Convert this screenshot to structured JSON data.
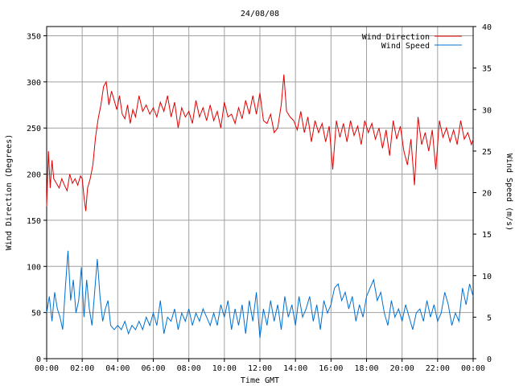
{
  "chart_data": {
    "type": "line",
    "title": "24/08/08",
    "xlabel": "Time GMT",
    "ylabel_left": "Wind Direction (Degrees)",
    "ylabel_right": "Wind Speed (m/s)",
    "x_ticks": [
      "00:00",
      "02:00",
      "04:00",
      "06:00",
      "08:00",
      "10:00",
      "12:00",
      "14:00",
      "16:00",
      "18:00",
      "20:00",
      "22:00",
      "00:00"
    ],
    "x_range_hours": [
      0,
      24
    ],
    "y_left": {
      "min": 0,
      "max": 360,
      "ticks": [
        0,
        50,
        100,
        150,
        200,
        250,
        300,
        350
      ]
    },
    "y_right": {
      "min": 0,
      "max": 40,
      "ticks": [
        0,
        5,
        10,
        15,
        20,
        25,
        30,
        35,
        40
      ]
    },
    "grid": true,
    "legend_position": "top-right",
    "series": [
      {
        "name": "Wind Direction",
        "axis": "left",
        "color": "#e00000",
        "points": [
          [
            0.0,
            165
          ],
          [
            0.1,
            225
          ],
          [
            0.2,
            185
          ],
          [
            0.3,
            215
          ],
          [
            0.4,
            195
          ],
          [
            0.55,
            190
          ],
          [
            0.7,
            185
          ],
          [
            0.85,
            195
          ],
          [
            1.0,
            188
          ],
          [
            1.15,
            182
          ],
          [
            1.3,
            200
          ],
          [
            1.45,
            190
          ],
          [
            1.6,
            195
          ],
          [
            1.75,
            188
          ],
          [
            1.9,
            198
          ],
          [
            2.0,
            195
          ],
          [
            2.1,
            175
          ],
          [
            2.2,
            160
          ],
          [
            2.3,
            185
          ],
          [
            2.45,
            195
          ],
          [
            2.6,
            210
          ],
          [
            2.75,
            240
          ],
          [
            2.9,
            260
          ],
          [
            3.05,
            275
          ],
          [
            3.2,
            295
          ],
          [
            3.35,
            300
          ],
          [
            3.5,
            275
          ],
          [
            3.65,
            290
          ],
          [
            3.8,
            280
          ],
          [
            3.95,
            270
          ],
          [
            4.1,
            285
          ],
          [
            4.25,
            265
          ],
          [
            4.4,
            260
          ],
          [
            4.55,
            275
          ],
          [
            4.7,
            255
          ],
          [
            4.85,
            270
          ],
          [
            5.0,
            262
          ],
          [
            5.2,
            285
          ],
          [
            5.4,
            268
          ],
          [
            5.6,
            275
          ],
          [
            5.8,
            265
          ],
          [
            6.0,
            272
          ],
          [
            6.2,
            262
          ],
          [
            6.4,
            278
          ],
          [
            6.6,
            268
          ],
          [
            6.8,
            285
          ],
          [
            7.0,
            262
          ],
          [
            7.2,
            278
          ],
          [
            7.4,
            250
          ],
          [
            7.6,
            272
          ],
          [
            7.8,
            262
          ],
          [
            8.0,
            268
          ],
          [
            8.2,
            255
          ],
          [
            8.4,
            280
          ],
          [
            8.6,
            262
          ],
          [
            8.8,
            272
          ],
          [
            9.0,
            258
          ],
          [
            9.2,
            275
          ],
          [
            9.4,
            258
          ],
          [
            9.6,
            268
          ],
          [
            9.8,
            250
          ],
          [
            10.0,
            278
          ],
          [
            10.2,
            262
          ],
          [
            10.4,
            265
          ],
          [
            10.6,
            255
          ],
          [
            10.8,
            272
          ],
          [
            11.0,
            260
          ],
          [
            11.2,
            280
          ],
          [
            11.4,
            265
          ],
          [
            11.6,
            285
          ],
          [
            11.8,
            265
          ],
          [
            12.0,
            288
          ],
          [
            12.2,
            258
          ],
          [
            12.4,
            255
          ],
          [
            12.6,
            265
          ],
          [
            12.8,
            245
          ],
          [
            13.0,
            250
          ],
          [
            13.2,
            275
          ],
          [
            13.35,
            308
          ],
          [
            13.5,
            268
          ],
          [
            13.7,
            262
          ],
          [
            13.9,
            258
          ],
          [
            14.1,
            248
          ],
          [
            14.3,
            268
          ],
          [
            14.5,
            245
          ],
          [
            14.7,
            262
          ],
          [
            14.9,
            235
          ],
          [
            15.1,
            258
          ],
          [
            15.3,
            245
          ],
          [
            15.5,
            255
          ],
          [
            15.7,
            235
          ],
          [
            15.9,
            252
          ],
          [
            16.1,
            205
          ],
          [
            16.3,
            258
          ],
          [
            16.5,
            240
          ],
          [
            16.7,
            255
          ],
          [
            16.9,
            235
          ],
          [
            17.1,
            258
          ],
          [
            17.3,
            242
          ],
          [
            17.5,
            252
          ],
          [
            17.7,
            232
          ],
          [
            17.9,
            258
          ],
          [
            18.1,
            245
          ],
          [
            18.3,
            255
          ],
          [
            18.5,
            238
          ],
          [
            18.7,
            250
          ],
          [
            18.9,
            228
          ],
          [
            19.1,
            248
          ],
          [
            19.3,
            220
          ],
          [
            19.5,
            258
          ],
          [
            19.7,
            238
          ],
          [
            19.9,
            252
          ],
          [
            20.1,
            225
          ],
          [
            20.3,
            210
          ],
          [
            20.5,
            238
          ],
          [
            20.7,
            188
          ],
          [
            20.9,
            262
          ],
          [
            21.1,
            232
          ],
          [
            21.3,
            245
          ],
          [
            21.5,
            225
          ],
          [
            21.7,
            248
          ],
          [
            21.9,
            205
          ],
          [
            22.1,
            258
          ],
          [
            22.3,
            240
          ],
          [
            22.5,
            250
          ],
          [
            22.7,
            235
          ],
          [
            22.9,
            248
          ],
          [
            23.1,
            232
          ],
          [
            23.3,
            258
          ],
          [
            23.5,
            238
          ],
          [
            23.7,
            245
          ],
          [
            23.9,
            232
          ],
          [
            24.0,
            238
          ]
        ]
      },
      {
        "name": "Wind Speed",
        "axis": "right",
        "color": "#0070d0",
        "points": [
          [
            0.0,
            5.5
          ],
          [
            0.15,
            7.5
          ],
          [
            0.3,
            4.5
          ],
          [
            0.45,
            8.0
          ],
          [
            0.6,
            6.0
          ],
          [
            0.75,
            5.0
          ],
          [
            0.9,
            3.5
          ],
          [
            1.05,
            8.5
          ],
          [
            1.2,
            13.0
          ],
          [
            1.35,
            7.0
          ],
          [
            1.5,
            9.5
          ],
          [
            1.65,
            5.5
          ],
          [
            1.8,
            7.0
          ],
          [
            1.95,
            11.0
          ],
          [
            2.1,
            5.0
          ],
          [
            2.25,
            9.5
          ],
          [
            2.4,
            6.0
          ],
          [
            2.55,
            4.0
          ],
          [
            2.7,
            8.0
          ],
          [
            2.85,
            12.0
          ],
          [
            3.0,
            7.5
          ],
          [
            3.15,
            4.5
          ],
          [
            3.3,
            6.0
          ],
          [
            3.45,
            7.0
          ],
          [
            3.6,
            4.0
          ],
          [
            3.8,
            3.5
          ],
          [
            4.0,
            4.0
          ],
          [
            4.2,
            3.5
          ],
          [
            4.4,
            4.5
          ],
          [
            4.6,
            3.0
          ],
          [
            4.8,
            4.0
          ],
          [
            5.0,
            3.5
          ],
          [
            5.2,
            4.5
          ],
          [
            5.4,
            3.5
          ],
          [
            5.6,
            5.0
          ],
          [
            5.8,
            4.0
          ],
          [
            6.0,
            5.5
          ],
          [
            6.2,
            4.0
          ],
          [
            6.4,
            7.0
          ],
          [
            6.6,
            3.0
          ],
          [
            6.8,
            5.0
          ],
          [
            7.0,
            4.5
          ],
          [
            7.2,
            6.0
          ],
          [
            7.4,
            3.5
          ],
          [
            7.6,
            5.5
          ],
          [
            7.8,
            4.5
          ],
          [
            8.0,
            6.0
          ],
          [
            8.2,
            4.0
          ],
          [
            8.4,
            5.5
          ],
          [
            8.6,
            4.5
          ],
          [
            8.8,
            6.0
          ],
          [
            9.0,
            5.0
          ],
          [
            9.2,
            4.0
          ],
          [
            9.4,
            5.5
          ],
          [
            9.6,
            4.0
          ],
          [
            9.8,
            6.5
          ],
          [
            10.0,
            5.0
          ],
          [
            10.2,
            7.0
          ],
          [
            10.4,
            3.5
          ],
          [
            10.6,
            6.0
          ],
          [
            10.8,
            4.0
          ],
          [
            11.0,
            6.5
          ],
          [
            11.2,
            3.0
          ],
          [
            11.4,
            7.0
          ],
          [
            11.6,
            4.5
          ],
          [
            11.8,
            8.0
          ],
          [
            12.0,
            2.5
          ],
          [
            12.2,
            6.0
          ],
          [
            12.4,
            4.0
          ],
          [
            12.6,
            7.0
          ],
          [
            12.8,
            4.5
          ],
          [
            13.0,
            6.5
          ],
          [
            13.2,
            3.5
          ],
          [
            13.4,
            7.5
          ],
          [
            13.6,
            5.0
          ],
          [
            13.8,
            6.5
          ],
          [
            14.0,
            4.0
          ],
          [
            14.2,
            7.5
          ],
          [
            14.4,
            5.0
          ],
          [
            14.6,
            6.0
          ],
          [
            14.8,
            7.5
          ],
          [
            15.0,
            4.5
          ],
          [
            15.2,
            6.5
          ],
          [
            15.4,
            3.5
          ],
          [
            15.6,
            7.0
          ],
          [
            15.8,
            5.5
          ],
          [
            16.0,
            6.5
          ],
          [
            16.2,
            8.5
          ],
          [
            16.4,
            9.0
          ],
          [
            16.6,
            7.0
          ],
          [
            16.8,
            8.0
          ],
          [
            17.0,
            6.0
          ],
          [
            17.2,
            7.5
          ],
          [
            17.4,
            4.5
          ],
          [
            17.6,
            6.5
          ],
          [
            17.8,
            5.0
          ],
          [
            18.0,
            7.5
          ],
          [
            18.2,
            8.5
          ],
          [
            18.4,
            9.5
          ],
          [
            18.6,
            7.0
          ],
          [
            18.8,
            8.0
          ],
          [
            19.0,
            5.5
          ],
          [
            19.2,
            4.0
          ],
          [
            19.4,
            7.0
          ],
          [
            19.6,
            5.0
          ],
          [
            19.8,
            6.0
          ],
          [
            20.0,
            4.5
          ],
          [
            20.2,
            6.5
          ],
          [
            20.4,
            5.0
          ],
          [
            20.6,
            3.5
          ],
          [
            20.8,
            5.5
          ],
          [
            21.0,
            6.0
          ],
          [
            21.2,
            4.5
          ],
          [
            21.4,
            7.0
          ],
          [
            21.6,
            5.0
          ],
          [
            21.8,
            6.5
          ],
          [
            22.0,
            4.5
          ],
          [
            22.2,
            5.5
          ],
          [
            22.4,
            8.0
          ],
          [
            22.6,
            6.5
          ],
          [
            22.8,
            4.0
          ],
          [
            23.0,
            5.5
          ],
          [
            23.2,
            4.5
          ],
          [
            23.4,
            8.5
          ],
          [
            23.6,
            6.5
          ],
          [
            23.8,
            9.0
          ],
          [
            24.0,
            7.5
          ]
        ]
      }
    ]
  }
}
